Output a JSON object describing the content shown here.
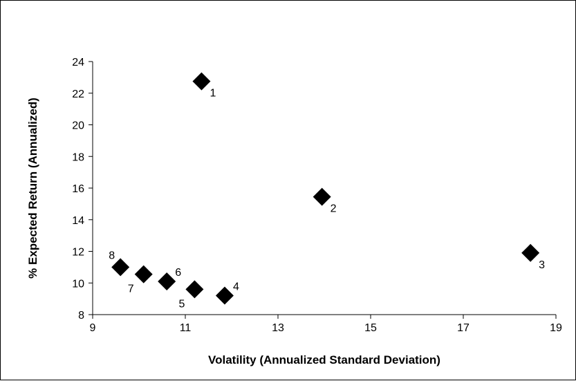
{
  "chart_data": {
    "type": "scatter",
    "title": "",
    "xlabel": "Volatility (Annualized Standard Deviation)",
    "ylabel": "% Expected Return (Annualized)",
    "xlim": [
      9,
      19
    ],
    "ylim": [
      8,
      24
    ],
    "xticks": [
      9,
      11,
      13,
      15,
      17,
      19
    ],
    "yticks": [
      8,
      10,
      12,
      14,
      16,
      18,
      20,
      22,
      24
    ],
    "grid": false,
    "legend": "none",
    "marker": "diamond",
    "marker_color": "#000000",
    "points": [
      {
        "label": "1",
        "x": 11.35,
        "y": 22.75,
        "label_pos": "below-right"
      },
      {
        "label": "2",
        "x": 13.95,
        "y": 15.45,
        "label_pos": "below-right"
      },
      {
        "label": "3",
        "x": 18.45,
        "y": 11.9,
        "label_pos": "below-right"
      },
      {
        "label": "4",
        "x": 11.85,
        "y": 9.2,
        "label_pos": "above-right"
      },
      {
        "label": "5",
        "x": 11.2,
        "y": 9.6,
        "label_pos": "below-left"
      },
      {
        "label": "6",
        "x": 10.6,
        "y": 10.1,
        "label_pos": "above-right"
      },
      {
        "label": "7",
        "x": 10.1,
        "y": 10.55,
        "label_pos": "below-left"
      },
      {
        "label": "8",
        "x": 9.6,
        "y": 11.0,
        "label_pos": "above-left"
      }
    ]
  }
}
